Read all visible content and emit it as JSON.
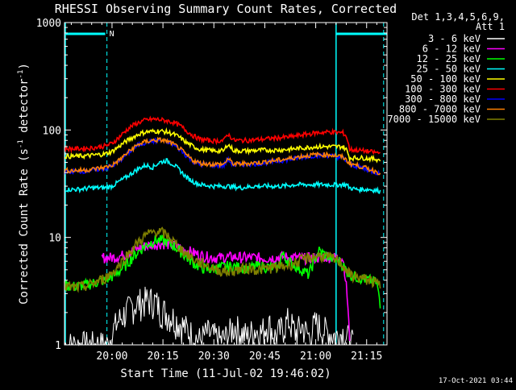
{
  "chart_data": {
    "type": "line",
    "title": "RHESSI Observing Summary Count Rates, Corrected",
    "xlabel": "Start Time (11-Jul-02 19:46:02)",
    "ylabel_main": "Corrected Count Rate (s",
    "ylabel_sup1": "-1",
    "ylabel_mid": " detector",
    "ylabel_sup2": "-1",
    "ylabel_end": ")",
    "yscale": "log",
    "ylim": [
      1,
      1000
    ],
    "xlim_minutes": [
      0,
      95
    ],
    "x_ticks": [
      {
        "minute": 14,
        "label": "20:00"
      },
      {
        "minute": 29,
        "label": "20:15"
      },
      {
        "minute": 44,
        "label": "20:30"
      },
      {
        "minute": 59,
        "label": "20:45"
      },
      {
        "minute": 74,
        "label": "21:00"
      },
      {
        "minute": 89,
        "label": "21:15"
      }
    ],
    "y_ticks": [
      {
        "value": 1,
        "label": "1"
      },
      {
        "value": 10,
        "label": "10"
      },
      {
        "value": 100,
        "label": "100"
      },
      {
        "value": 1000,
        "label": "1000"
      }
    ],
    "legend_title": "Det 1,3,4,5,6,9,",
    "legend_subtitle": "Att 1",
    "night_marker": "N",
    "timestamp": "17-Oct-2021 03:44",
    "series": [
      {
        "name": "3 - 6 keV",
        "color": "#ffffff",
        "x": [
          0,
          13,
          14,
          16,
          18,
          20,
          22,
          24,
          26,
          27,
          28,
          30,
          32,
          34,
          36,
          38,
          40,
          42,
          44,
          46,
          48,
          50,
          52,
          54,
          56,
          58,
          60,
          62,
          64,
          66,
          68,
          70,
          72,
          74,
          76,
          78,
          80,
          82,
          84,
          85
        ],
        "y": [
          1,
          1,
          1.3,
          1.7,
          2,
          2.3,
          2.5,
          2.6,
          2.6,
          2.5,
          2.2,
          2,
          1.8,
          1.6,
          1.4,
          1.2,
          1.1,
          1.3,
          1.2,
          1.1,
          1.2,
          1.5,
          1.3,
          1.2,
          1.4,
          1.3,
          1.6,
          1.2,
          1.4,
          1.7,
          1.3,
          1.5,
          1.2,
          1.6,
          1.4,
          1.3,
          1.2,
          1.3,
          1.1,
          1
        ]
      },
      {
        "name": "6 - 12 keV",
        "color": "#ff00ff",
        "x": [
          11,
          14,
          17,
          20,
          23,
          26,
          29,
          32,
          35,
          38,
          41,
          44,
          47,
          50,
          53,
          56,
          59,
          62,
          65,
          68,
          71,
          74,
          77,
          80,
          82,
          83,
          84
        ],
        "y": [
          6.5,
          6.5,
          6.8,
          7.5,
          8.2,
          8.6,
          8.8,
          8.5,
          7.8,
          7.2,
          6.7,
          6.5,
          6.5,
          6.6,
          6.5,
          6.5,
          6.4,
          6.5,
          6.6,
          6.5,
          6.4,
          6.5,
          6.6,
          6.5,
          6.4,
          3.5,
          1
        ]
      },
      {
        "name": "12 - 25 keV",
        "color": "#00ff00",
        "x": [
          0,
          3,
          6,
          9,
          12,
          15,
          18,
          21,
          24,
          27,
          30,
          33,
          36,
          39,
          42,
          45,
          48,
          51,
          54,
          57,
          60,
          63,
          64,
          66,
          69,
          72,
          75,
          78,
          81,
          84,
          87,
          90,
          92,
          93
        ],
        "y": [
          3.6,
          3.5,
          3.6,
          3.8,
          4,
          4.5,
          5.5,
          7,
          8.5,
          9.5,
          9.2,
          8,
          6.5,
          5.5,
          5,
          5.2,
          5.4,
          5.3,
          5.2,
          5.4,
          5.3,
          5.2,
          7,
          6,
          5.2,
          4.5,
          7.5,
          6.5,
          6,
          4.5,
          4.2,
          4,
          3.8,
          2.2
        ]
      },
      {
        "name": "25 - 50 keV",
        "color": "#00ffff",
        "x": [
          0,
          4,
          8,
          12,
          14,
          16,
          18,
          20,
          22,
          24,
          26,
          28,
          30,
          32,
          34,
          36,
          38,
          40,
          44,
          48,
          52,
          56,
          60,
          64,
          68,
          72,
          76,
          80,
          83,
          84,
          86,
          90,
          93
        ],
        "y": [
          28,
          28,
          29,
          29,
          30,
          33,
          36,
          40,
          44,
          47,
          45,
          50,
          52,
          48,
          42,
          36,
          33,
          31,
          30,
          30,
          29,
          30,
          30,
          30,
          31,
          31,
          31,
          31,
          31,
          29,
          28,
          28,
          27
        ]
      },
      {
        "name": "50 - 100 keV",
        "color": "#ffff00",
        "x": [
          0,
          4,
          8,
          12,
          14,
          16,
          18,
          20,
          22,
          24,
          26,
          28,
          30,
          32,
          34,
          36,
          38,
          40,
          44,
          47,
          48,
          50,
          54,
          58,
          62,
          66,
          70,
          74,
          78,
          82,
          83,
          84,
          88,
          93
        ],
        "y": [
          57,
          57,
          58,
          60,
          63,
          70,
          78,
          85,
          92,
          96,
          97,
          98,
          96,
          92,
          85,
          76,
          70,
          66,
          64,
          64,
          74,
          64,
          64,
          65,
          65,
          66,
          68,
          70,
          70,
          70,
          66,
          55,
          55,
          53
        ]
      },
      {
        "name": "100 - 300 keV",
        "color": "#ff0000",
        "x": [
          0,
          4,
          8,
          12,
          14,
          16,
          18,
          20,
          22,
          24,
          26,
          28,
          30,
          32,
          34,
          36,
          38,
          40,
          44,
          47,
          48,
          50,
          54,
          58,
          62,
          66,
          70,
          74,
          78,
          82,
          83,
          84,
          88,
          93
        ],
        "y": [
          67,
          67,
          68,
          71,
          75,
          85,
          98,
          110,
          118,
          124,
          126,
          125,
          122,
          118,
          110,
          98,
          88,
          82,
          79,
          80,
          92,
          80,
          80,
          82,
          84,
          86,
          90,
          94,
          96,
          94,
          88,
          66,
          64,
          61
        ]
      },
      {
        "name": "300 - 800 keV",
        "color": "#0000ff",
        "x": [
          0,
          4,
          8,
          12,
          14,
          16,
          18,
          20,
          22,
          24,
          26,
          28,
          30,
          32,
          34,
          36,
          38,
          40,
          44,
          47,
          48,
          50,
          54,
          58,
          62,
          66,
          70,
          74,
          78,
          82,
          84,
          88,
          93
        ],
        "y": [
          41,
          41,
          42,
          44,
          46,
          51,
          58,
          66,
          73,
          77,
          79,
          80,
          78,
          73,
          66,
          57,
          51,
          48,
          47,
          47,
          53,
          47,
          48,
          49,
          51,
          53,
          56,
          58,
          58,
          55,
          48,
          44,
          39
        ]
      },
      {
        "name": "800 - 7000 keV",
        "color": "#ff8000",
        "x": [
          0,
          4,
          8,
          12,
          14,
          16,
          18,
          20,
          22,
          24,
          26,
          28,
          30,
          32,
          34,
          36,
          38,
          40,
          44,
          47,
          48,
          50,
          54,
          58,
          62,
          66,
          70,
          74,
          78,
          82,
          84,
          88,
          93
        ],
        "y": [
          42,
          42,
          43,
          45,
          47,
          52,
          59,
          67,
          74,
          78,
          80,
          81,
          79,
          74,
          67,
          58,
          52,
          49,
          48,
          48,
          54,
          48,
          49,
          50,
          52,
          54,
          57,
          59,
          59,
          56,
          49,
          45,
          40
        ]
      },
      {
        "name": "7000 - 15000 keV",
        "color": "#808000",
        "x": [
          0,
          3,
          6,
          9,
          12,
          15,
          18,
          21,
          24,
          27,
          29,
          31,
          33,
          36,
          39,
          42,
          45,
          48,
          51,
          54,
          57,
          60,
          63,
          66,
          69,
          72,
          75,
          78,
          81,
          84,
          87,
          90,
          93
        ],
        "y": [
          3.5,
          3.4,
          3.5,
          3.8,
          4.2,
          5,
          6.5,
          8.5,
          10.5,
          11.5,
          11,
          10,
          8.5,
          7,
          6,
          5.5,
          5,
          4.8,
          5,
          5.2,
          5,
          5.2,
          5.3,
          5.5,
          6,
          6.5,
          6.8,
          6.5,
          6,
          4.5,
          4.2,
          4,
          3.6
        ]
      }
    ]
  }
}
